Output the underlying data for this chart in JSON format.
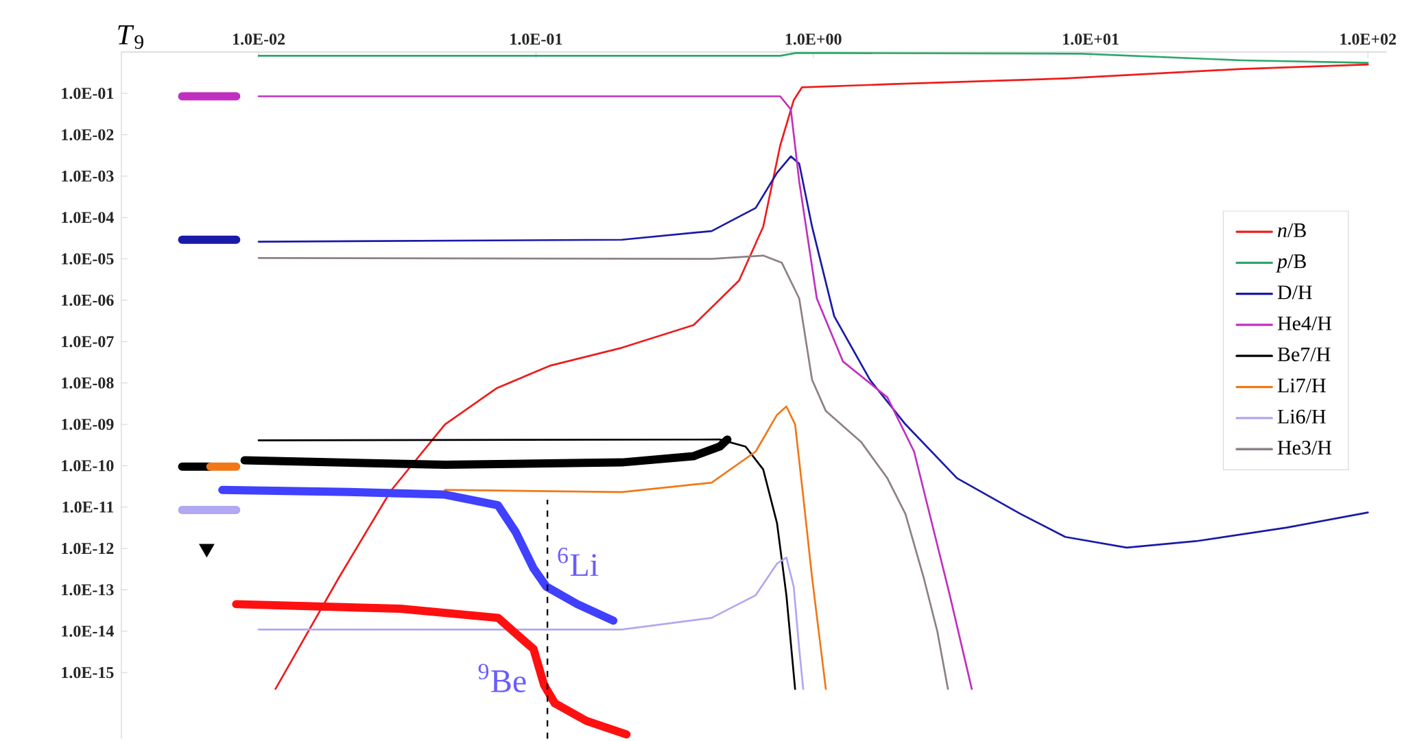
{
  "chart_data": {
    "type": "line",
    "xlabel": "*T*$_{9}$",
    "log": "xy",
    "grid": false,
    "legend": "right",
    "line_style": "solid",
    "xlim": [
      0.0032,
      117
    ],
    "ylim": [
      2.5e-17,
      1
    ],
    "xticks": [
      {
        "value": 0.01,
        "label": "1.0E-02"
      },
      {
        "value": 0.1,
        "label": "1.0E-01"
      },
      {
        "value": 1,
        "label": "1.0E+00"
      },
      {
        "value": 10,
        "label": "1.0E+01"
      },
      {
        "value": 100,
        "label": "1.0E+02"
      }
    ],
    "yticks": [
      {
        "value": 0.1,
        "label": "1.0E-01"
      },
      {
        "value": 0.01,
        "label": "1.0E-02"
      },
      {
        "value": 0.001,
        "label": "1.0E-03"
      },
      {
        "value": 0.0001,
        "label": "1.0E-04"
      },
      {
        "value": 1e-05,
        "label": "1.0E-05"
      },
      {
        "value": 1e-06,
        "label": "1.0E-06"
      },
      {
        "value": 1e-07,
        "label": "1.0E-07"
      },
      {
        "value": 1e-08,
        "label": "1.0E-08"
      },
      {
        "value": 1e-09,
        "label": "1.0E-09"
      },
      {
        "value": 1e-10,
        "label": "1.0E-10"
      },
      {
        "value": 1e-11,
        "label": "1.0E-11"
      },
      {
        "value": 1e-12,
        "label": "1.0E-12"
      },
      {
        "value": 1e-13,
        "label": "1.0E-13"
      },
      {
        "value": 1e-14,
        "label": "1.0E-14"
      },
      {
        "value": 1e-15,
        "label": "1.0E-15"
      }
    ],
    "series": [
      {
        "name": "*n*/B",
        "color": "#ee1c1c",
        "x": [
          0.0115,
          0.0195,
          0.03,
          0.047,
          0.072,
          0.112,
          0.204,
          0.37,
          0.54,
          0.66,
          0.76,
          0.85,
          0.91,
          1.86,
          8.1,
          35,
          100
        ],
        "values": [
          4e-16,
          2e-13,
          2.5e-11,
          1e-09,
          7.4e-09,
          2.6e-08,
          7.1e-08,
          2.5e-07,
          3e-06,
          6e-05,
          0.0055,
          0.068,
          0.14,
          0.166,
          0.23,
          0.39,
          0.5
        ]
      },
      {
        "name": "*p*/B",
        "color": "#2ca86a",
        "x": [
          0.01,
          0.76,
          0.87,
          9.3,
          35,
          100
        ],
        "values": [
          0.81,
          0.81,
          0.95,
          0.91,
          0.63,
          0.55
        ]
      },
      {
        "name": "D/H",
        "color": "#1a1aa8",
        "x": [
          0.01,
          0.204,
          0.43,
          0.62,
          0.74,
          0.83,
          0.89,
          0.99,
          1.19,
          1.6,
          2.15,
          3.3,
          5.6,
          8.1,
          13.5,
          24,
          51,
          100
        ],
        "values": [
          2.6e-05,
          2.9e-05,
          4.7e-05,
          0.00017,
          0.0012,
          0.003,
          0.002,
          6e-05,
          4.1e-07,
          1.2e-08,
          1e-09,
          5e-11,
          6.8e-12,
          1.9e-12,
          1.05e-12,
          1.5e-12,
          3.2e-12,
          7.4e-12
        ]
      },
      {
        "name": "He4/H",
        "color": "#c030c0",
        "x": [
          0.01,
          0.76,
          0.83,
          0.89,
          1.03,
          1.28,
          1.85,
          2.31,
          2.68,
          3.1,
          3.73
        ],
        "values": [
          0.085,
          0.085,
          0.041,
          0.00074,
          1.1e-06,
          3.3e-08,
          4.5e-09,
          2.2e-10,
          4e-12,
          7.9e-14,
          4e-16
        ]
      },
      {
        "name": "Be7/H",
        "color": "#000000",
        "x": [
          0.01,
          0.46,
          0.57,
          0.66,
          0.74,
          0.8,
          0.86
        ],
        "values": [
          4.1e-10,
          4.3e-10,
          2.9e-10,
          8.1e-11,
          4.1e-12,
          7.4e-14,
          4e-16
        ]
      },
      {
        "name": "Li7/H",
        "color": "#f07818",
        "x": [
          0.047,
          0.204,
          0.43,
          0.62,
          0.74,
          0.8,
          0.86,
          0.92,
          0.99,
          1.11
        ],
        "values": [
          2.6e-11,
          2.3e-11,
          3.9e-11,
          2.2e-10,
          1.7e-09,
          2.7e-09,
          1e-09,
          1.8e-11,
          2e-13,
          4e-16
        ]
      },
      {
        "name": "Li6/H",
        "color": "#b0a8f0",
        "x": [
          0.01,
          0.204,
          0.43,
          0.62,
          0.74,
          0.8,
          0.85,
          0.89,
          0.92
        ],
        "values": [
          1.1e-14,
          1.1e-14,
          2.1e-14,
          7.4e-14,
          4.3e-13,
          6e-13,
          1.2e-13,
          3.7e-15,
          4e-16
        ]
      },
      {
        "name": "He3/H",
        "color": "#8c8088",
        "x": [
          0.01,
          0.43,
          0.66,
          0.77,
          0.89,
          0.99,
          1.11,
          1.49,
          1.85,
          2.15,
          2.5,
          2.8,
          3.06
        ],
        "values": [
          1.05e-05,
          1e-05,
          1.2e-05,
          8.1e-06,
          1.1e-06,
          1.2e-08,
          2.1e-09,
          3.7e-10,
          5e-11,
          6.8e-12,
          2e-13,
          1e-14,
          4e-16
        ]
      },
      {
        "color": "#000000",
        "x": [
          0.0089,
          0.047,
          0.204,
          0.37,
          0.46,
          0.49
        ],
        "values": [
          1.35e-10,
          1.05e-10,
          1.2e-10,
          1.7e-10,
          2.9e-10,
          4.3e-10
        ]
      },
      {
        "color": "#4040ff",
        "x": [
          0.0074,
          0.0224,
          0.047,
          0.073,
          0.0845,
          0.098,
          0.109,
          0.141,
          0.19
        ],
        "values": [
          2.6e-11,
          2.3e-11,
          2e-11,
          1.1e-11,
          2.5e-12,
          3.3e-13,
          1.2e-13,
          4.5e-14,
          1.8e-14
        ]
      },
      {
        "color": "#ff1010",
        "x": [
          0.0083,
          0.0324,
          0.073,
          0.098,
          0.107,
          0.117,
          0.152,
          0.212
        ],
        "values": [
          4.5e-14,
          3.5e-14,
          2.1e-14,
          3.7e-15,
          5e-16,
          1.8e-16,
          6.8e-17,
          3.2e-17
        ]
      },
      {
        "color": "#c030c0",
        "x": [
          0.0053,
          0.0083
        ],
        "values": [
          0.085,
          0.085
        ]
      },
      {
        "color": "#1a1aa8",
        "x": [
          0.0053,
          0.0083
        ],
        "values": [
          2.9e-05,
          2.9e-05
        ]
      },
      {
        "color": "#000000",
        "x": [
          0.0053,
          0.0067
        ],
        "values": [
          9.5e-11,
          9.5e-11
        ]
      },
      {
        "color": "#f07818",
        "x": [
          0.0067,
          0.0083
        ],
        "values": [
          9.5e-11,
          9.5e-11
        ]
      },
      {
        "color": "#b0a8f0",
        "x": [
          0.0053,
          0.0083
        ],
        "values": [
          8.5e-12,
          8.5e-12
        ]
      },
      {
        "type": "scatter",
        "color": "#000000",
        "marker": "triangle",
        "x": [
          0.0065
        ],
        "values": [
          1e-12
        ]
      }
    ],
    "ref_lines": [
      {
        "axis": "x",
        "value": 0.11,
        "color": "#000000",
        "line_style": "dashed"
      }
    ],
    "annotations": [
      {
        "text": "$^{6}$Li",
        "x": 0.109,
        "y": 1.2e-13
      },
      {
        "text": "$^{9}$Be",
        "x": 0.098,
        "y": 3.7e-15
      }
    ]
  }
}
